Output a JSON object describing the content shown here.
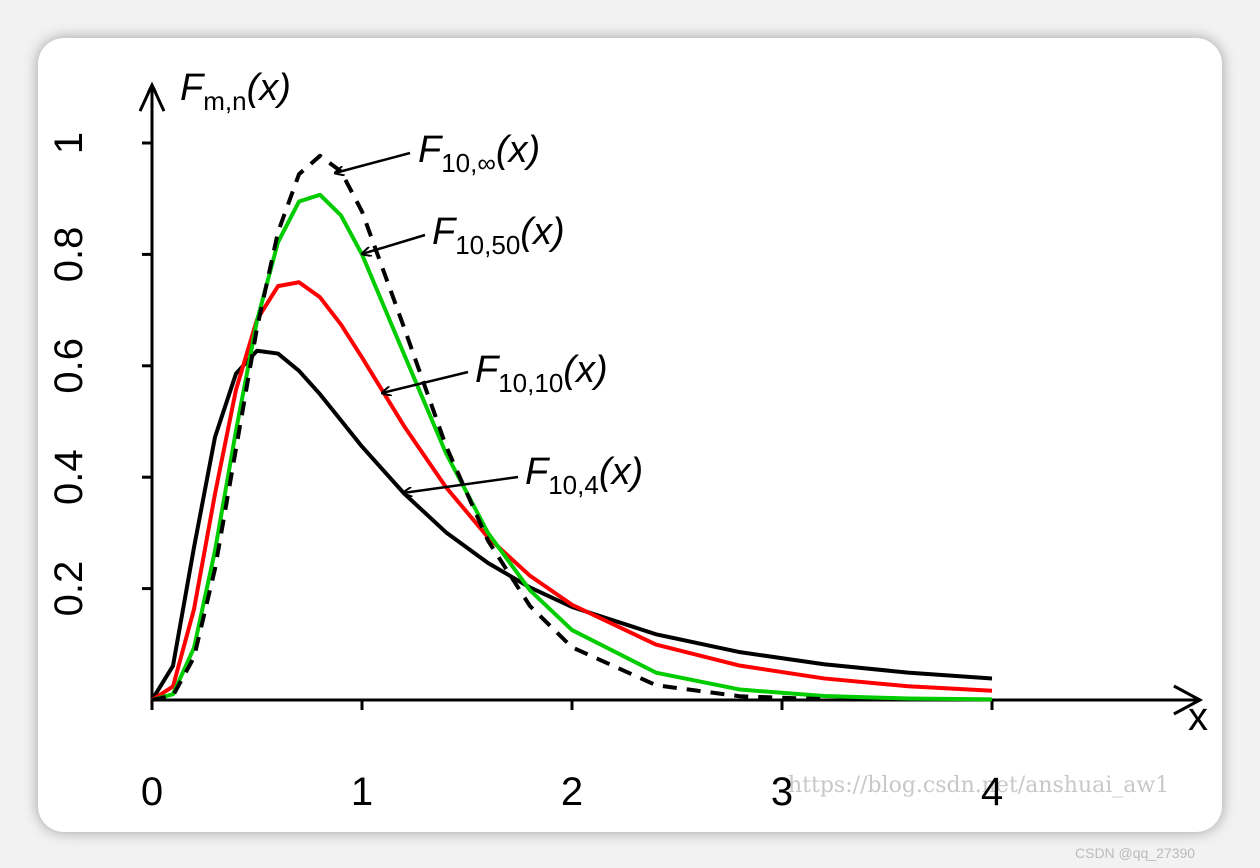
{
  "chart_data": {
    "type": "line",
    "y_label": {
      "main": "F",
      "sub": "m,n",
      "tail": "(x)"
    },
    "x_label": "x",
    "x": [
      0,
      0.1,
      0.2,
      0.3,
      0.4,
      0.5,
      0.6,
      0.7,
      0.8,
      0.9,
      1.0,
      1.2,
      1.4,
      1.6,
      1.8,
      2.0,
      2.4,
      2.8,
      3.2,
      3.6,
      4.0
    ],
    "series": [
      {
        "color": "#000000",
        "dashed": false,
        "values": [
          0,
          0.0614,
          0.274,
          0.472,
          0.586,
          0.627,
          0.622,
          0.591,
          0.549,
          0.502,
          0.455,
          0.371,
          0.301,
          0.246,
          0.202,
          0.167,
          0.118,
          0.0859,
          0.0642,
          0.0492,
          0.0385
        ]
      },
      {
        "color": "#ff0000",
        "dashed": false,
        "values": [
          0,
          0.0243,
          0.163,
          0.37,
          0.557,
          0.683,
          0.743,
          0.75,
          0.723,
          0.674,
          0.615,
          0.492,
          0.382,
          0.292,
          0.223,
          0.171,
          0.0995,
          0.0617,
          0.0387,
          0.0246,
          0.0165
        ]
      },
      {
        "color": "#00cc00",
        "dashed": false,
        "values": [
          0,
          0.0105,
          0.0937,
          0.268,
          0.4835,
          0.681,
          0.822,
          0.895,
          0.907,
          0.87,
          0.8,
          0.621,
          0.443,
          0.3,
          0.197,
          0.1256,
          0.0491,
          0.01876,
          0.00713,
          0.00274,
          0.00107
        ]
      },
      {
        "color": "#000000",
        "dashed": true,
        "values": [
          0,
          0.0079,
          0.0766,
          0.2353,
          0.451,
          0.668,
          0.84,
          0.944,
          0.977,
          0.949,
          0.877,
          0.669,
          0.456,
          0.286,
          0.1687,
          0.0946,
          0.0265,
          0.00666,
          0.00154,
          null,
          null
        ]
      }
    ],
    "annotations": [
      {
        "main": "F",
        "sub": "10,4",
        "tail": "(x)"
      },
      {
        "main": "F",
        "sub": "10,10",
        "tail": "(x)"
      },
      {
        "main": "F",
        "sub": "10,50",
        "tail": "(x)"
      },
      {
        "main": "F",
        "sub": "10,∞",
        "tail": "(x)"
      }
    ],
    "xlim": [
      0,
      4.99
    ],
    "ylim": [
      0,
      1.104
    ],
    "xticks": [
      0,
      1,
      2,
      3,
      4
    ],
    "yticks": [
      0.2,
      0.4,
      0.6,
      0.8,
      1
    ],
    "watermark": "https://blog.csdn.net/anshuai_aw1",
    "footer": "CSDN @qq_27390"
  }
}
